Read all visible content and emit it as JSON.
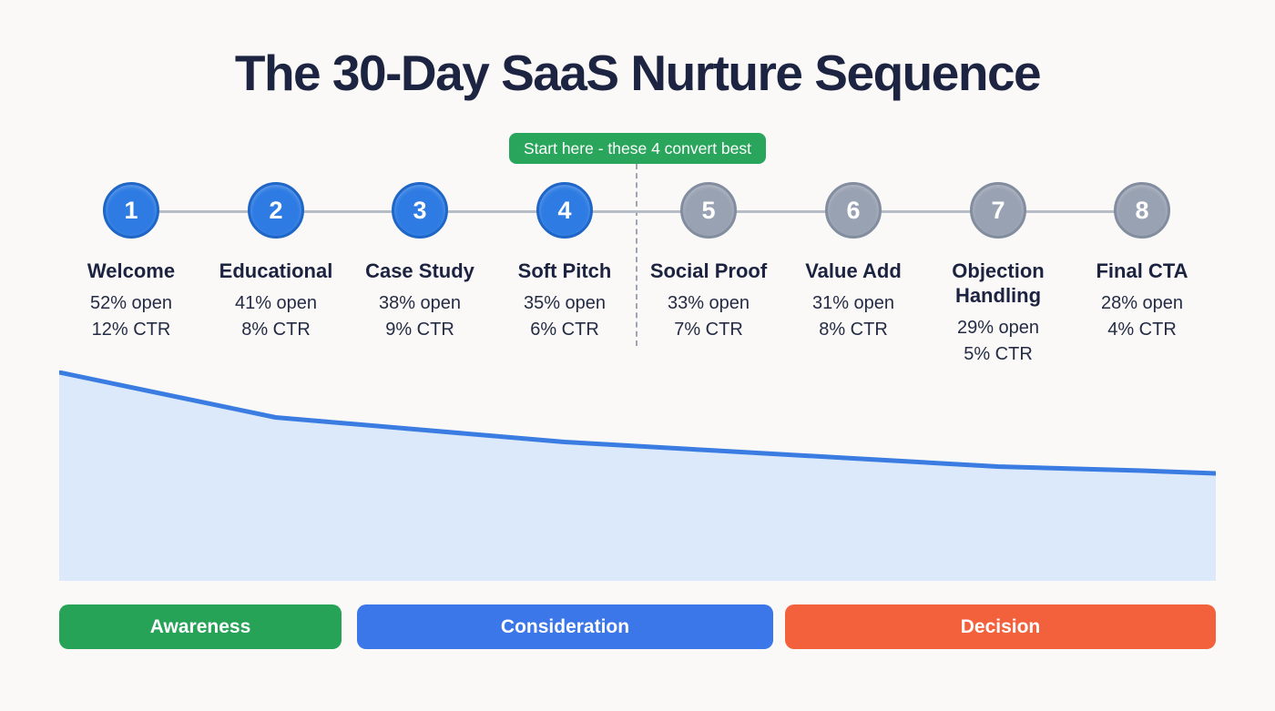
{
  "title": "The 30-Day SaaS Nurture Sequence",
  "badge": {
    "label": "Start here - these 4 convert best",
    "color": "#2aa55c"
  },
  "steps": [
    {
      "number": "1",
      "label": "Welcome",
      "open": "52% open",
      "ctr": "12% CTR",
      "highlighted": true
    },
    {
      "number": "2",
      "label": "Educational",
      "open": "41% open",
      "ctr": "8% CTR",
      "highlighted": true
    },
    {
      "number": "3",
      "label": "Case Study",
      "open": "38% open",
      "ctr": "9% CTR",
      "highlighted": true
    },
    {
      "number": "4",
      "label": "Soft Pitch",
      "open": "35% open",
      "ctr": "6% CTR",
      "highlighted": true
    },
    {
      "number": "5",
      "label": "Social Proof",
      "open": "33% open",
      "ctr": "7% CTR",
      "highlighted": false
    },
    {
      "number": "6",
      "label": "Value Add",
      "open": "31% open",
      "ctr": "8% CTR",
      "highlighted": false
    },
    {
      "number": "7",
      "label": "Objection Handling",
      "open": "29% open",
      "ctr": "5% CTR",
      "highlighted": false
    },
    {
      "number": "8",
      "label": "Final CTA",
      "open": "28% open",
      "ctr": "4% CTR",
      "highlighted": false
    }
  ],
  "chart_data": {
    "type": "area",
    "categories": [
      "Welcome",
      "Educational",
      "Case Study",
      "Soft Pitch",
      "Social Proof",
      "Value Add",
      "Objection Handling",
      "Final CTA"
    ],
    "series": [
      {
        "name": "Open rate %",
        "values": [
          52,
          41,
          38,
          35,
          33,
          31,
          29,
          28
        ]
      }
    ],
    "ylim": [
      0,
      52
    ],
    "grid": false,
    "legend": "none",
    "line_color": "#3a7ce1",
    "fill_color": "#dbe9fb"
  },
  "phases": [
    {
      "label": "Awareness",
      "color": "#26a357"
    },
    {
      "label": "Consideration",
      "color": "#3b77e8"
    },
    {
      "label": "Decision",
      "color": "#f3613c"
    }
  ],
  "colors": {
    "background": "#faf9f7",
    "title": "#1c2442",
    "step_active": "#2e7ce3",
    "step_inactive": "#99a2b2",
    "connector": "#b7bdc6"
  }
}
